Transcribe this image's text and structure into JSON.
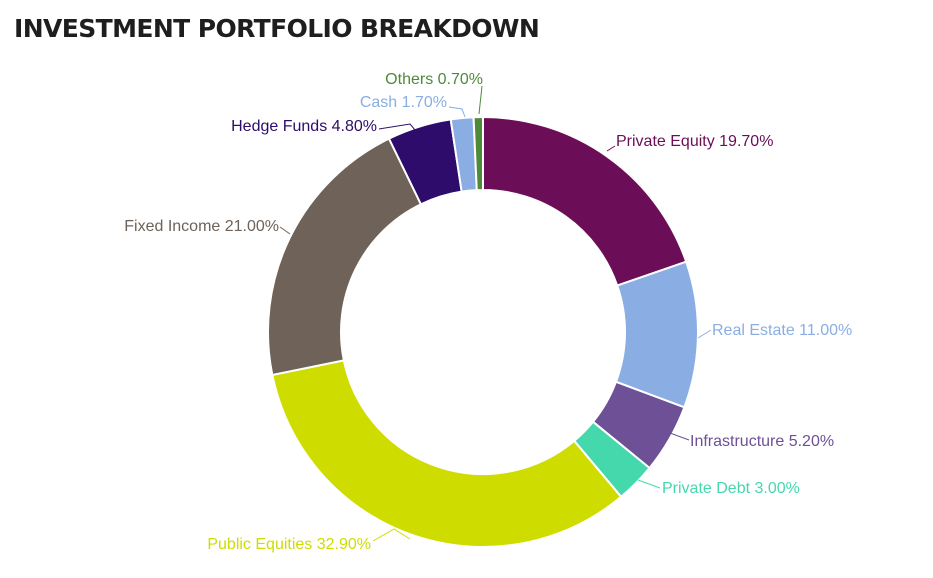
{
  "chart_data": {
    "type": "pie",
    "title": "INVESTMENT PORTFOLIO BREAKDOWN",
    "slices": [
      {
        "name": "Private Equity",
        "value": 19.7,
        "label": "Private Equity 19.70%",
        "color": "#6b0e57"
      },
      {
        "name": "Real Estate",
        "value": 11.0,
        "label": "Real Estate 11.00%",
        "color": "#8aaee3"
      },
      {
        "name": "Infrastructure",
        "value": 5.2,
        "label": "Infrastructure 5.20%",
        "color": "#6e5096"
      },
      {
        "name": "Private Debt",
        "value": 3.0,
        "label": "Private Debt 3.00%",
        "color": "#46d8ad"
      },
      {
        "name": "Public Equities",
        "value": 32.9,
        "label": "Public Equities 32.90%",
        "color": "#cfdc00"
      },
      {
        "name": "Fixed Income",
        "value": 21.0,
        "label": "Fixed Income 21.00%",
        "color": "#6e6259"
      },
      {
        "name": "Hedge Funds",
        "value": 4.8,
        "label": "Hedge Funds 4.80%",
        "color": "#2d0c6b"
      },
      {
        "name": "Cash",
        "value": 1.7,
        "label": "Cash 1.70%",
        "color": "#8aaee3"
      },
      {
        "name": "Others",
        "value": 0.7,
        "label": "Others 0.70%",
        "color": "#4f8a3a"
      }
    ]
  }
}
